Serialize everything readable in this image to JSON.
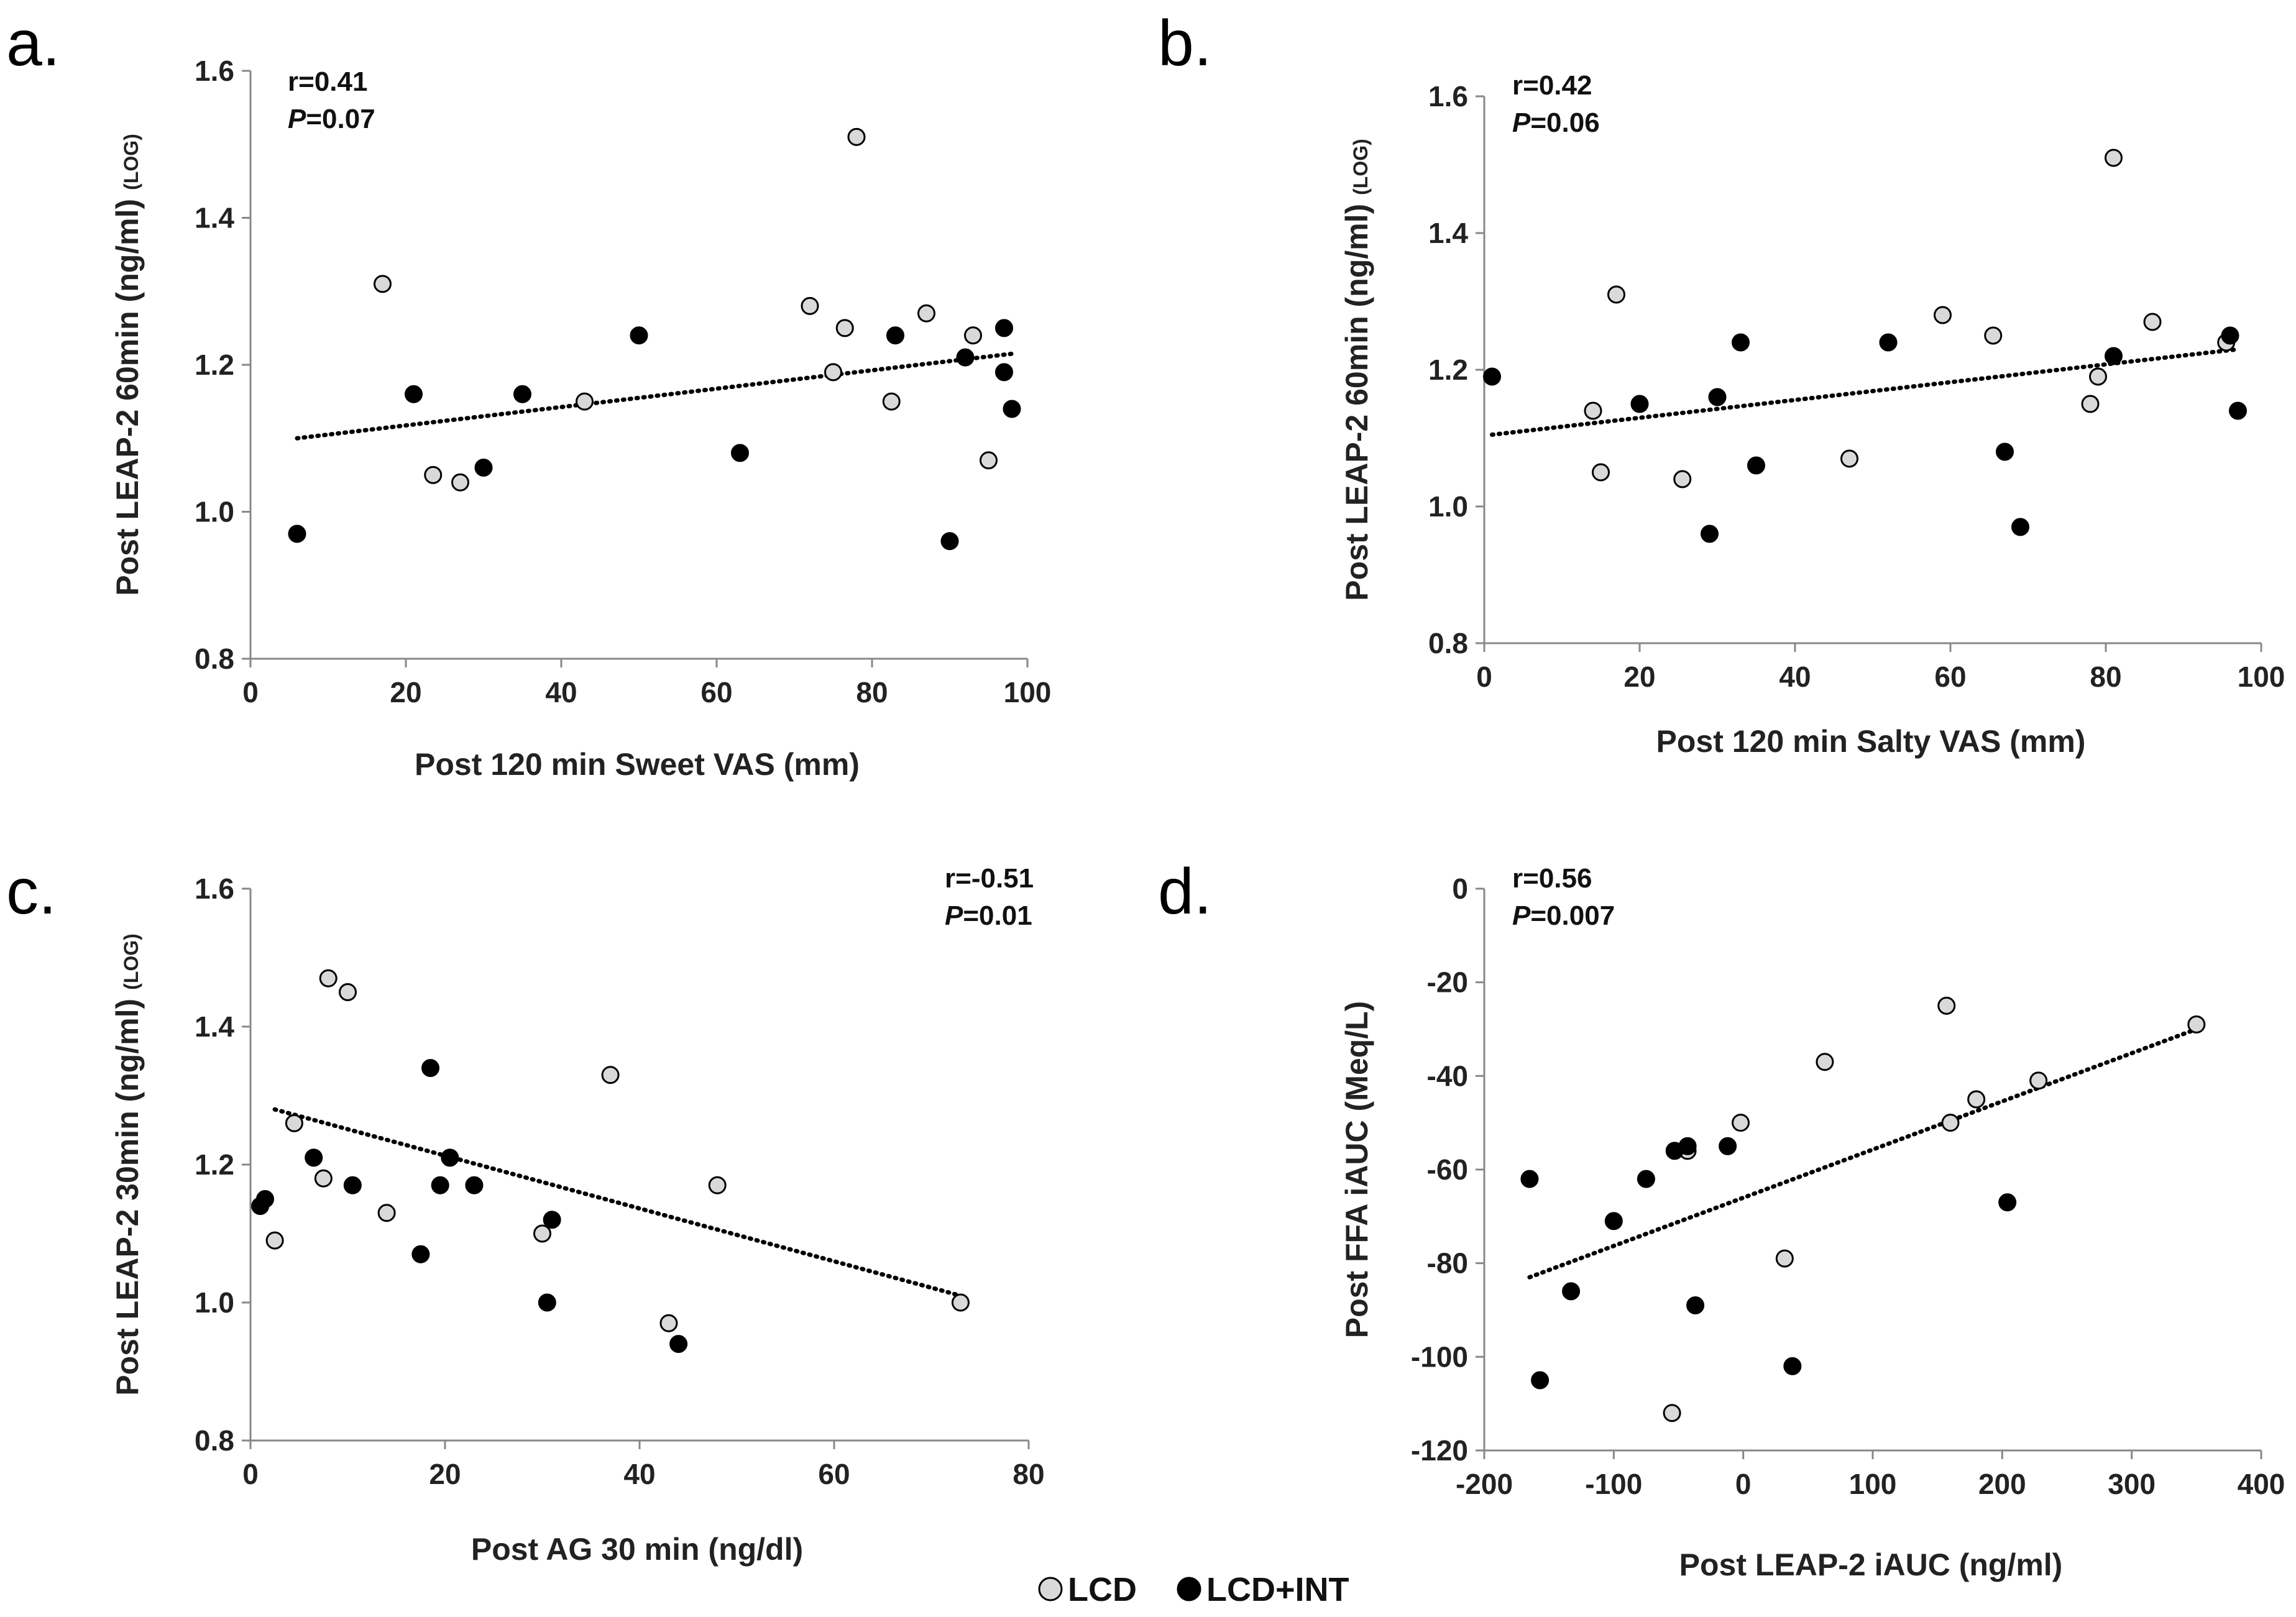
{
  "legend": {
    "items": [
      {
        "label": "LCD",
        "fill": "#d9d9d9"
      },
      {
        "label": "LCD+INT",
        "fill": "#000000"
      }
    ]
  },
  "chart_data": [
    {
      "type": "scatter",
      "panel": "a.",
      "xlabel": "Post 120 min Sweet VAS (mm)",
      "ylabel": "Post LEAP-2 60min (ng/ml)",
      "ylabel_suffix": "(LOG)",
      "xlim": [
        0,
        100
      ],
      "ylim": [
        0.8,
        1.6
      ],
      "xticks": [
        0,
        20,
        40,
        60,
        80,
        100
      ],
      "yticks": [
        0.8,
        1.0,
        1.2,
        1.4,
        1.6
      ],
      "ytick_labels": [
        "0.8",
        "1.0",
        "1.2",
        "1.4",
        "1.6"
      ],
      "stat_r": "r=0.41",
      "stat_p_label": "P",
      "stat_p_value": "=0.07",
      "trendline": [
        [
          6,
          1.1
        ],
        [
          98,
          1.215
        ]
      ],
      "series": [
        {
          "name": "LCD",
          "points": [
            [
              17,
              1.31
            ],
            [
              23.5,
              1.05
            ],
            [
              27,
              1.04
            ],
            [
              43,
              1.15
            ],
            [
              72,
              1.28
            ],
            [
              75,
              1.19
            ],
            [
              76.5,
              1.25
            ],
            [
              78,
              1.51
            ],
            [
              82.5,
              1.15
            ],
            [
              87,
              1.27
            ],
            [
              93,
              1.24
            ],
            [
              95,
              1.07
            ]
          ]
        },
        {
          "name": "LCD+INT",
          "points": [
            [
              6,
              0.97
            ],
            [
              21,
              1.16
            ],
            [
              30,
              1.06
            ],
            [
              35,
              1.16
            ],
            [
              50,
              1.24
            ],
            [
              63,
              1.08
            ],
            [
              83,
              1.24
            ],
            [
              90,
              0.96
            ],
            [
              92,
              1.21
            ],
            [
              97,
              1.25
            ],
            [
              97,
              1.19
            ],
            [
              98,
              1.14
            ]
          ]
        }
      ]
    },
    {
      "type": "scatter",
      "panel": "b.",
      "xlabel": "Post 120 min Salty VAS (mm)",
      "ylabel": "Post LEAP-2 60min (ng/ml)",
      "ylabel_suffix": "(LOG)",
      "xlim": [
        0,
        100
      ],
      "ylim": [
        0.8,
        1.6
      ],
      "xticks": [
        0,
        20,
        40,
        60,
        80,
        100
      ],
      "yticks": [
        0.8,
        1.0,
        1.2,
        1.4,
        1.6
      ],
      "ytick_labels": [
        "0.8",
        "1.0",
        "1.2",
        "1.4",
        "1.6"
      ],
      "stat_r": "r=0.42",
      "stat_p_label": "P",
      "stat_p_value": "=0.06",
      "trendline": [
        [
          1,
          1.105
        ],
        [
          97,
          1.23
        ]
      ],
      "series": [
        {
          "name": "LCD",
          "points": [
            [
              14,
              1.14
            ],
            [
              15,
              1.05
            ],
            [
              17,
              1.31
            ],
            [
              25.5,
              1.04
            ],
            [
              47,
              1.07
            ],
            [
              59,
              1.28
            ],
            [
              65.5,
              1.25
            ],
            [
              78,
              1.15
            ],
            [
              79,
              1.19
            ],
            [
              81,
              1.51
            ],
            [
              86,
              1.27
            ],
            [
              95.5,
              1.24
            ]
          ]
        },
        {
          "name": "LCD+INT",
          "points": [
            [
              1,
              1.19
            ],
            [
              20,
              1.15
            ],
            [
              29,
              0.96
            ],
            [
              30,
              1.16
            ],
            [
              33,
              1.24
            ],
            [
              35,
              1.06
            ],
            [
              52,
              1.24
            ],
            [
              67,
              1.08
            ],
            [
              69,
              0.97
            ],
            [
              81,
              1.22
            ],
            [
              96,
              1.25
            ],
            [
              97,
              1.14
            ]
          ]
        }
      ]
    },
    {
      "type": "scatter",
      "panel": "c.",
      "xlabel": "Post AG 30 min (ng/dl)",
      "ylabel": "Post LEAP-2 30min (ng/ml)",
      "ylabel_suffix": "(LOG)",
      "xlim": [
        0,
        80
      ],
      "ylim": [
        0.8,
        1.6
      ],
      "xticks": [
        0,
        20,
        40,
        60,
        80
      ],
      "yticks": [
        0.8,
        1.0,
        1.2,
        1.4,
        1.6
      ],
      "ytick_labels": [
        "0.8",
        "1.0",
        "1.2",
        "1.4",
        "1.6"
      ],
      "stat_r": "r=-0.51",
      "stat_p_label": "P",
      "stat_p_value": "=0.01",
      "trendline": [
        [
          2.5,
          1.28
        ],
        [
          73,
          1.01
        ]
      ],
      "series": [
        {
          "name": "LCD",
          "points": [
            [
              2.5,
              1.09
            ],
            [
              4.5,
              1.26
            ],
            [
              7.5,
              1.18
            ],
            [
              8,
              1.47
            ],
            [
              10,
              1.45
            ],
            [
              14,
              1.13
            ],
            [
              30,
              1.1
            ],
            [
              37,
              1.33
            ],
            [
              43,
              0.97
            ],
            [
              48,
              1.17
            ],
            [
              73,
              1.0
            ]
          ]
        },
        {
          "name": "LCD+INT",
          "points": [
            [
              1,
              1.14
            ],
            [
              1.5,
              1.15
            ],
            [
              6.5,
              1.21
            ],
            [
              10.5,
              1.17
            ],
            [
              17.5,
              1.07
            ],
            [
              18.5,
              1.34
            ],
            [
              19.5,
              1.17
            ],
            [
              20.5,
              1.21
            ],
            [
              23,
              1.17
            ],
            [
              30.5,
              1.0
            ],
            [
              31,
              1.12
            ],
            [
              44,
              0.94
            ]
          ]
        }
      ]
    },
    {
      "type": "scatter",
      "panel": "d.",
      "xlabel": "Post LEAP-2 iAUC (ng/ml)",
      "ylabel": "Post FFA iAUC (Meq/L)",
      "ylabel_suffix": "",
      "xlim": [
        -200,
        400
      ],
      "ylim": [
        -120,
        0
      ],
      "xticks": [
        -200,
        -100,
        0,
        100,
        200,
        300,
        400
      ],
      "yticks": [
        -120,
        -100,
        -80,
        -60,
        -40,
        -20,
        0
      ],
      "ytick_labels": [
        "-120",
        "-100",
        "-80",
        "-60",
        "-40",
        "-20",
        "0"
      ],
      "stat_r": "r=0.56",
      "stat_p_label": "P",
      "stat_p_value": "=0.007",
      "trendline": [
        [
          -165,
          -83
        ],
        [
          350,
          -30
        ]
      ],
      "series": [
        {
          "name": "LCD",
          "points": [
            [
              -55,
              -112
            ],
            [
              -43,
              -56
            ],
            [
              -2,
              -50
            ],
            [
              32,
              -79
            ],
            [
              63,
              -37
            ],
            [
              157,
              -25
            ],
            [
              160,
              -50
            ],
            [
              180,
              -45
            ],
            [
              228,
              -41
            ],
            [
              350,
              -29
            ]
          ]
        },
        {
          "name": "LCD+INT",
          "points": [
            [
              -165,
              -62
            ],
            [
              -157,
              -105
            ],
            [
              -133,
              -86
            ],
            [
              -100,
              -71
            ],
            [
              -75,
              -62
            ],
            [
              -53,
              -56
            ],
            [
              -43,
              -55
            ],
            [
              -37,
              -89
            ],
            [
              -12,
              -55
            ],
            [
              38,
              -102
            ],
            [
              204,
              -67
            ]
          ]
        }
      ]
    }
  ]
}
